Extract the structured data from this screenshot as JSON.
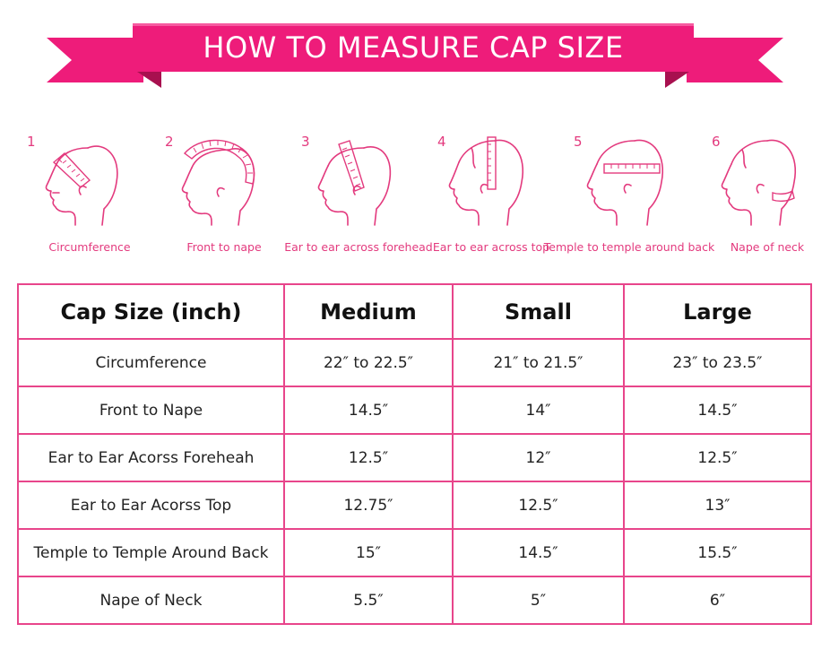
{
  "banner": {
    "title": "HOW TO MEASURE CAP SIZE",
    "color": "#ee1c7a",
    "shadow_color": "#b0125a"
  },
  "steps": [
    {
      "number": "1",
      "label": "Circumference",
      "icon": "head-circumference-icon"
    },
    {
      "number": "2",
      "label": "Front to nape",
      "icon": "head-front-to-nape-icon"
    },
    {
      "number": "3",
      "label": "Ear to ear across forehead",
      "icon": "head-ear-to-ear-forehead-icon"
    },
    {
      "number": "4",
      "label": "Ear to ear across top",
      "icon": "head-ear-to-ear-top-icon"
    },
    {
      "number": "5",
      "label": "Temple to temple around back",
      "icon": "head-temple-to-temple-icon"
    },
    {
      "number": "6",
      "label": "Nape of neck",
      "icon": "head-nape-of-neck-icon"
    }
  ],
  "table": {
    "headers": [
      "Cap Size (inch)",
      "Medium",
      "Small",
      "Large"
    ],
    "rows": [
      [
        "Circumference",
        "22″ to 22.5″",
        "21″ to 21.5″",
        "23″ to 23.5″"
      ],
      [
        "Front to Nape",
        "14.5″",
        "14″",
        "14.5″"
      ],
      [
        "Ear to Ear Acorss Foreheah",
        "12.5″",
        "12″",
        "12.5″"
      ],
      [
        "Ear to Ear Acorss Top",
        "12.75″",
        "12.5″",
        "13″"
      ],
      [
        "Temple to Temple Around Back",
        "15″",
        "14.5″",
        "15.5″"
      ],
      [
        "Nape of Neck",
        "5.5″",
        "5″",
        "6″"
      ]
    ],
    "border_color": "#e8458b"
  },
  "accent_color": "#e33a7e"
}
